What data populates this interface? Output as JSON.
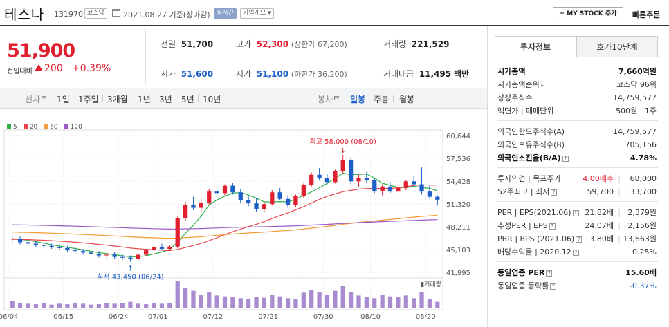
{
  "header": {
    "name": "테스나",
    "code": "131970",
    "market": "코스닥",
    "date": "2021.08.27 기준(장마감)",
    "realtime": "실시간",
    "company_info": "기업개요",
    "my_stock": "+ MY STOCK 추가",
    "quick_order": "빠른주문"
  },
  "price": {
    "current": "51,900",
    "change_label": "전일대비",
    "change": "200",
    "change_pct": "+0.39%"
  },
  "stats": {
    "prev_label": "전일",
    "prev": "51,700",
    "high_label": "고가",
    "high": "52,300",
    "upper_limit": "(상한가 67,200)",
    "volume_label": "거래량",
    "volume": "221,529",
    "open_label": "시가",
    "open": "51,600",
    "low_label": "저가",
    "low": "51,100",
    "lower_limit": "(하한가 36,200)",
    "amount_label": "거래대금",
    "amount": "11,495",
    "amount_unit": "백만"
  },
  "periods": {
    "line_label": "선차트",
    "line": [
      "1일",
      "1주일",
      "3개월",
      "1년",
      "3년",
      "5년",
      "10년"
    ],
    "candle_label": "봉차트",
    "candle": [
      "일봉",
      "주봉",
      "월봉"
    ],
    "selected": "일봉"
  },
  "chart_data": {
    "type": "candlestick",
    "legend": [
      {
        "name": "5",
        "color": "#2db14a"
      },
      {
        "name": "20",
        "color": "#e8474b"
      },
      {
        "name": "60",
        "color": "#f39a34"
      },
      {
        "name": "120",
        "color": "#9b59c8"
      }
    ],
    "y_ticks": [
      "60,644",
      "57,536",
      "54,428",
      "51,320",
      "48,211",
      "45,103",
      "41,995"
    ],
    "ylim": [
      41995,
      60644
    ],
    "x_ticks": [
      "06/04",
      "06/15",
      "06/24",
      "07/01",
      "07/12",
      "07/21",
      "07/30",
      "08/10",
      "08/20"
    ],
    "annotation_high": "최고 58,000 (08/10)",
    "annotation_low": "최저 43,450 (06/24)",
    "volume_label": "거래량",
    "candles": [
      [
        46500,
        47000,
        46000,
        46600
      ],
      [
        46600,
        46900,
        45800,
        46100
      ],
      [
        46100,
        46400,
        45600,
        45900
      ],
      [
        45900,
        46200,
        45400,
        45700
      ],
      [
        45700,
        46000,
        45300,
        45600
      ],
      [
        45600,
        45900,
        45200,
        45400
      ],
      [
        45400,
        45800,
        45000,
        45300
      ],
      [
        45300,
        45600,
        44800,
        45000
      ],
      [
        45000,
        45400,
        44600,
        44900
      ],
      [
        44900,
        45200,
        44400,
        44700
      ],
      [
        44700,
        45100,
        44300,
        44500
      ],
      [
        44500,
        44900,
        44000,
        44300
      ],
      [
        44300,
        44700,
        43900,
        44400
      ],
      [
        44400,
        44800,
        43800,
        44100
      ],
      [
        44100,
        44500,
        43700,
        44000
      ],
      [
        44000,
        44300,
        43450,
        43800
      ],
      [
        43800,
        44600,
        43600,
        44400
      ],
      [
        44400,
        45200,
        44200,
        45000
      ],
      [
        45000,
        45600,
        44800,
        45400
      ],
      [
        45400,
        45900,
        45000,
        45200
      ],
      [
        45200,
        45700,
        44900,
        45500
      ],
      [
        45500,
        49600,
        45300,
        49400
      ],
      [
        49400,
        51600,
        49000,
        51200
      ],
      [
        51200,
        52300,
        50500,
        50800
      ],
      [
        50800,
        52000,
        50300,
        51500
      ],
      [
        51500,
        53400,
        51200,
        53000
      ],
      [
        53000,
        53700,
        52400,
        52800
      ],
      [
        52800,
        54000,
        52500,
        53800
      ],
      [
        53800,
        54200,
        52600,
        52900
      ],
      [
        52900,
        53300,
        51500,
        51800
      ],
      [
        51800,
        52400,
        51000,
        51400
      ],
      [
        51400,
        52100,
        50300,
        50600
      ],
      [
        50600,
        51600,
        50200,
        51300
      ],
      [
        51300,
        53200,
        51100,
        52900
      ],
      [
        52900,
        53500,
        51800,
        52000
      ],
      [
        52000,
        52500,
        50800,
        51200
      ],
      [
        51200,
        52600,
        50900,
        52400
      ],
      [
        52400,
        54100,
        52200,
        53900
      ],
      [
        53900,
        55600,
        53700,
        55300
      ],
      [
        55300,
        56200,
        54500,
        54800
      ],
      [
        54800,
        55400,
        54000,
        54300
      ],
      [
        54300,
        56000,
        54100,
        55800
      ],
      [
        55800,
        58000,
        55500,
        57300
      ],
      [
        57300,
        57600,
        54000,
        54400
      ],
      [
        54400,
        55300,
        53600,
        54900
      ],
      [
        54900,
        55700,
        54200,
        54600
      ],
      [
        54600,
        54900,
        52800,
        53100
      ],
      [
        53100,
        54000,
        52500,
        53700
      ],
      [
        53700,
        54300,
        52800,
        53000
      ],
      [
        53000,
        53800,
        52600,
        53500
      ],
      [
        53500,
        54600,
        53200,
        54400
      ],
      [
        54400,
        55100,
        53800,
        54000
      ],
      [
        54000,
        56300,
        52600,
        53000
      ],
      [
        53000,
        53800,
        52000,
        52300
      ],
      [
        52300,
        52500,
        51100,
        51900
      ]
    ],
    "volumes": [
      15,
      12,
      10,
      9,
      11,
      8,
      10,
      9,
      12,
      10,
      8,
      9,
      11,
      10,
      12,
      14,
      10,
      9,
      11,
      10,
      12,
      60,
      45,
      38,
      30,
      35,
      28,
      26,
      24,
      22,
      20,
      25,
      23,
      30,
      26,
      22,
      21,
      34,
      40,
      36,
      30,
      38,
      48,
      35,
      28,
      25,
      22,
      30,
      26,
      24,
      28,
      22,
      36,
      20,
      14
    ]
  },
  "tabs": {
    "invest": "투자정보",
    "quote": "호가10단계"
  },
  "invest_info": {
    "g1": [
      {
        "k": "시가총액",
        "v": "7,660억원",
        "bold": true
      },
      {
        "k": "시가총액순위",
        "v": "코스닥 96위",
        "arrow": true
      },
      {
        "k": "상장주식수",
        "v": "14,759,577"
      },
      {
        "k": "액면가 | 매매단위",
        "v": "500원 | 1주"
      }
    ],
    "g2": [
      {
        "k": "외국인한도주식수(A)",
        "v": "14,759,577"
      },
      {
        "k": "외국인보유주식수(B)",
        "v": "705,156"
      },
      {
        "k": "외국인소진율(B/A)",
        "v": "4.78%",
        "bold": true,
        "help": true
      }
    ],
    "g3": [
      {
        "k": "투자의견 | 목표주가",
        "v1": "4.00매수",
        "v2": "68,000"
      },
      {
        "k": "52주최고 | 최저",
        "v1": "59,700",
        "v2": "33,700",
        "help": true
      }
    ],
    "g4": [
      {
        "k": "PER | EPS(2021.06)",
        "v1": "21.82배",
        "v2": "2,379원",
        "help": true
      },
      {
        "k": "추정PER | EPS",
        "v1": "24.07배",
        "v2": "2,156원",
        "help": true
      },
      {
        "k": "PBR | BPS (2021.06)",
        "v1": "3.80배",
        "v2": "13,663원",
        "help": true
      },
      {
        "k": "배당수익률 | 2020.12",
        "v1": "",
        "v2": "0.25%",
        "help": true
      }
    ],
    "g5": [
      {
        "k": "동일업종 PER",
        "v": "15.60배",
        "bold": true,
        "help": true
      },
      {
        "k": "동일업종 등락률",
        "v": "-0.37%",
        "help": true,
        "blue": true
      }
    ]
  }
}
